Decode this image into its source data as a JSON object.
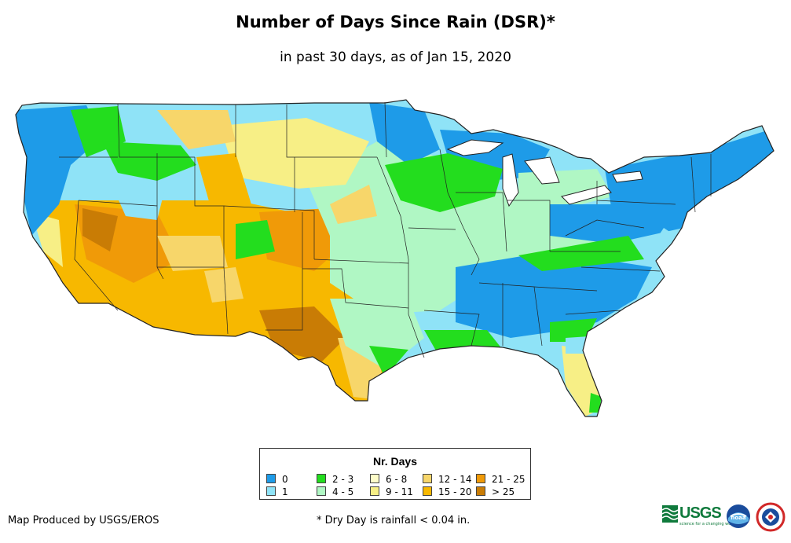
{
  "header": {
    "title": "Number of Days Since Rain (DSR)*",
    "subtitle": "in past 30 days, as of Jan 15, 2020"
  },
  "legend": {
    "title": "Nr. Days",
    "items": [
      {
        "label": "0",
        "color": "#1e9be8"
      },
      {
        "label": "1",
        "color": "#8fe3f7"
      },
      {
        "label": "2 - 3",
        "color": "#23dd1e"
      },
      {
        "label": "4 - 5",
        "color": "#b0f7c4"
      },
      {
        "label": "6 - 8",
        "color": "#fefdc9"
      },
      {
        "label": "9 - 11",
        "color": "#f7ef86"
      },
      {
        "label": "12 - 14",
        "color": "#f7d66a"
      },
      {
        "label": "15 - 20",
        "color": "#f7b800"
      },
      {
        "label": "21 - 25",
        "color": "#f09a08"
      },
      {
        "label": "> 25",
        "color": "#c97c05"
      }
    ]
  },
  "footer": {
    "credit": "Map Produced by USGS/EROS",
    "footnote": "* Dry Day is rainfall < 0.04 in.",
    "logos": {
      "usgs": "USGS",
      "usgs_tagline": "science for a changing world",
      "noaa": "noaa"
    }
  }
}
